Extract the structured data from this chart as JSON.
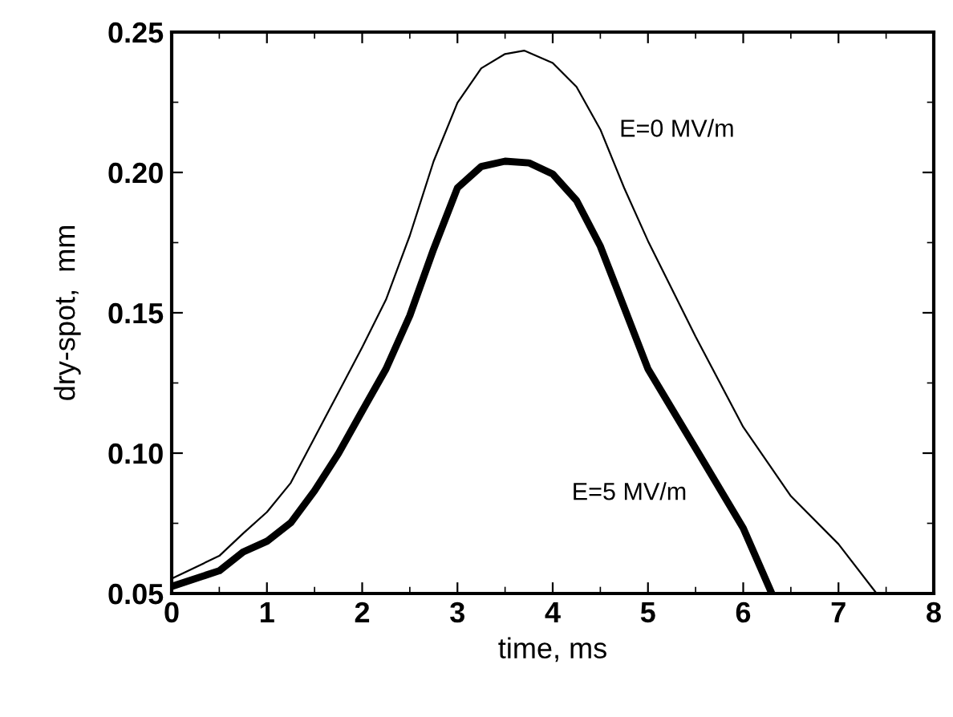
{
  "chart_data": {
    "type": "line",
    "xlabel": "time, ms",
    "ylabel": "dry-spot,  mm",
    "xlim": [
      0,
      8
    ],
    "ylim": [
      0.05,
      0.25
    ],
    "xticks": [
      0,
      1,
      2,
      3,
      4,
      5,
      6,
      7,
      8
    ],
    "yticks": [
      0.05,
      {
        "value": 0.1,
        "label": "0.10"
      },
      0.15,
      {
        "value": 0.2,
        "label": "0.20"
      },
      0.25
    ],
    "grid": false,
    "legend": false,
    "marker": "none",
    "line_style": "solid",
    "series": [
      {
        "name": "E=0 MV/m",
        "color": "#000000",
        "x": [
          0,
          0.5,
          0.75,
          1,
          1.25,
          1.5,
          1.75,
          2,
          2.25,
          2.5,
          2.75,
          3,
          3.25,
          3.5,
          3.7,
          4,
          4.25,
          4.5,
          4.75,
          5,
          5.5,
          6,
          6.5,
          7,
          7.4
        ],
        "values": [
          0.0553,
          0.0634,
          0.0714,
          0.079,
          0.0894,
          0.1055,
          0.1216,
          0.1377,
          0.1547,
          0.1775,
          0.204,
          0.2248,
          0.2371,
          0.2422,
          0.2434,
          0.239,
          0.2305,
          0.2153,
          0.1945,
          0.1756,
          0.1415,
          0.1093,
          0.0847,
          0.0676,
          0.05
        ]
      },
      {
        "name": "E=5 MV/m",
        "color": "#000000",
        "x": [
          0,
          0.5,
          0.75,
          1,
          1.25,
          1.5,
          1.75,
          2,
          2.25,
          2.5,
          2.75,
          3,
          3.25,
          3.5,
          3.75,
          4,
          4.25,
          4.5,
          4.75,
          5,
          5.5,
          6,
          6.3
        ],
        "values": [
          0.0525,
          0.0581,
          0.0648,
          0.0686,
          0.0752,
          0.0866,
          0.0998,
          0.115,
          0.13,
          0.149,
          0.1727,
          0.1945,
          0.2021,
          0.204,
          0.2034,
          0.1994,
          0.19,
          0.1737,
          0.1519,
          0.13,
          0.1017,
          0.0733,
          0.05
        ]
      }
    ]
  }
}
